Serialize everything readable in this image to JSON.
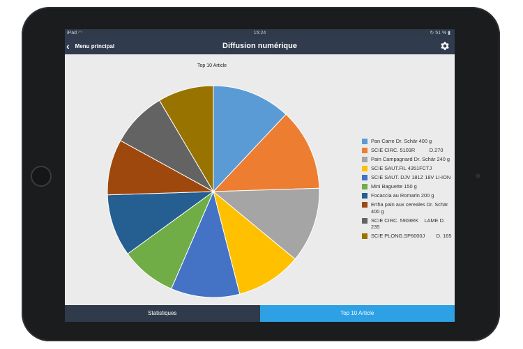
{
  "status": {
    "device": "iPad",
    "time": "15:24",
    "battery": "51 %"
  },
  "navbar": {
    "back_label": "Menu principal",
    "title": "Diffusion numérique"
  },
  "chart_title": "Top 10 Article",
  "chart_data": {
    "type": "pie",
    "title": "Top 10 Article",
    "categories": [
      "Pan Carre Dr. Schär 400 g",
      "SCIE CIRC. 5103R          D.270",
      "Pain Campagnard Dr. Schär 240 g",
      "SCIE SAUT.FIL 4351FCTJ",
      "SCIE SAUT. DJV 181Z 18V LI-ION",
      "Mini Baguette 150 g",
      "Focaccia au Romarin 200 g",
      "Ertha pain aux cereales Dr. Schär 400 g",
      "SCIE CIRC. 5903RK    LAME D. 235",
      "SCIE PLONG.SP6000J        D. 165"
    ],
    "values": [
      12,
      12.5,
      11.5,
      10,
      10.5,
      8.5,
      9.5,
      8.5,
      8.5,
      8.5
    ],
    "colors": [
      "#5b9bd5",
      "#ed7d31",
      "#a5a5a5",
      "#ffc000",
      "#4472c4",
      "#70ad47",
      "#255e91",
      "#9e480e",
      "#636363",
      "#997300"
    ],
    "legend_position": "right"
  },
  "tabs": {
    "stats_label": "Statistiques",
    "top10_label": "Top 10 Article"
  }
}
